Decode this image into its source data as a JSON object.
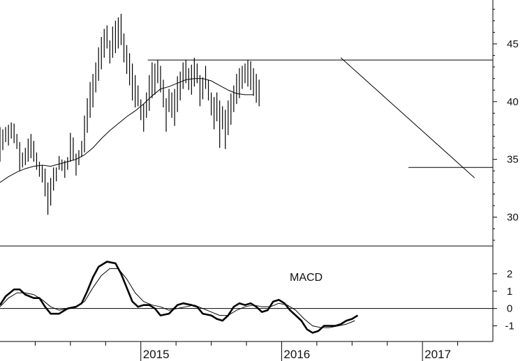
{
  "chart_data": [
    {
      "type": "ohlc",
      "title": "",
      "xlabel": "",
      "ylabel": "",
      "ylim": [
        27.5,
        48.8
      ],
      "yticks": [
        30,
        35,
        40,
        45
      ],
      "xlim": [
        2014.0,
        2017.5
      ],
      "grid": false,
      "bars": [
        [
          2014.0,
          34.8,
          37.8
        ],
        [
          2014.02,
          35.8,
          37.6
        ],
        [
          2014.04,
          36.5,
          37.8
        ],
        [
          2014.06,
          36.2,
          38.0
        ],
        [
          2014.08,
          36.8,
          38.2
        ],
        [
          2014.1,
          36.4,
          38.1
        ],
        [
          2014.12,
          35.9,
          37.2
        ],
        [
          2014.14,
          34.0,
          36.5
        ],
        [
          2014.16,
          34.3,
          35.6
        ],
        [
          2014.18,
          34.5,
          36.0
        ],
        [
          2014.2,
          34.8,
          36.8
        ],
        [
          2014.22,
          35.1,
          37.2
        ],
        [
          2014.24,
          34.8,
          36.6
        ],
        [
          2014.26,
          34.1,
          35.6
        ],
        [
          2014.28,
          33.5,
          34.8
        ],
        [
          2014.3,
          33.0,
          34.5
        ],
        [
          2014.32,
          31.8,
          34.2
        ],
        [
          2014.34,
          30.2,
          33.0
        ],
        [
          2014.36,
          31.0,
          33.4
        ],
        [
          2014.38,
          32.3,
          34.3
        ],
        [
          2014.4,
          33.1,
          34.3
        ],
        [
          2014.42,
          34.1,
          35.3
        ],
        [
          2014.44,
          34.0,
          35.0
        ],
        [
          2014.46,
          33.4,
          34.9
        ],
        [
          2014.48,
          34.1,
          35.2
        ],
        [
          2014.5,
          34.8,
          37.3
        ],
        [
          2014.52,
          34.9,
          36.9
        ],
        [
          2014.54,
          33.6,
          35.5
        ],
        [
          2014.56,
          34.5,
          35.8
        ],
        [
          2014.58,
          35.2,
          36.6
        ],
        [
          2014.6,
          35.6,
          38.8
        ],
        [
          2014.62,
          37.3,
          40.3
        ],
        [
          2014.64,
          38.6,
          41.7
        ],
        [
          2014.66,
          39.5,
          42.4
        ],
        [
          2014.68,
          40.8,
          43.4
        ],
        [
          2014.7,
          41.8,
          44.7
        ],
        [
          2014.72,
          42.8,
          45.6
        ],
        [
          2014.74,
          43.8,
          46.3
        ],
        [
          2014.76,
          44.6,
          46.6
        ],
        [
          2014.78,
          43.3,
          45.3
        ],
        [
          2014.8,
          43.8,
          46.5
        ],
        [
          2014.82,
          44.2,
          47.0
        ],
        [
          2014.84,
          44.6,
          47.3
        ],
        [
          2014.86,
          44.9,
          47.6
        ],
        [
          2014.88,
          43.4,
          45.9
        ],
        [
          2014.9,
          42.4,
          44.9
        ],
        [
          2014.92,
          41.4,
          44.2
        ],
        [
          2014.94,
          40.1,
          43.3
        ],
        [
          2014.96,
          39.5,
          42.3
        ],
        [
          2014.98,
          39.6,
          41.4
        ],
        [
          2015.0,
          38.4,
          40.2
        ],
        [
          2015.02,
          37.4,
          39.8
        ],
        [
          2015.04,
          38.6,
          40.8
        ],
        [
          2015.06,
          39.2,
          42.3
        ],
        [
          2015.08,
          40.3,
          43.4
        ],
        [
          2015.1,
          40.6,
          43.3
        ],
        [
          2015.12,
          41.6,
          43.6
        ],
        [
          2015.14,
          40.8,
          43.1
        ],
        [
          2015.16,
          39.5,
          41.9
        ],
        [
          2015.18,
          37.4,
          40.3
        ],
        [
          2015.2,
          39.1,
          41.1
        ],
        [
          2015.22,
          38.6,
          40.8
        ],
        [
          2015.24,
          37.9,
          41.1
        ],
        [
          2015.26,
          39.1,
          42.2
        ],
        [
          2015.28,
          40.1,
          42.6
        ],
        [
          2015.3,
          41.1,
          43.4
        ],
        [
          2015.32,
          41.6,
          43.6
        ],
        [
          2015.34,
          41.0,
          42.9
        ],
        [
          2015.36,
          40.6,
          43.2
        ],
        [
          2015.38,
          41.3,
          43.8
        ],
        [
          2015.4,
          41.6,
          43.3
        ],
        [
          2015.42,
          39.6,
          42.3
        ],
        [
          2015.44,
          40.2,
          42.1
        ],
        [
          2015.46,
          41.1,
          43.1
        ],
        [
          2015.48,
          40.1,
          41.9
        ],
        [
          2015.5,
          38.8,
          40.8
        ],
        [
          2015.52,
          37.6,
          40.4
        ],
        [
          2015.54,
          38.3,
          40.8
        ],
        [
          2015.56,
          36.0,
          40.1
        ],
        [
          2015.58,
          37.6,
          39.6
        ],
        [
          2015.6,
          35.9,
          39.3
        ],
        [
          2015.62,
          37.1,
          40.1
        ],
        [
          2015.64,
          38.0,
          40.7
        ],
        [
          2015.66,
          39.1,
          41.4
        ],
        [
          2015.68,
          39.8,
          42.4
        ],
        [
          2015.7,
          40.3,
          42.9
        ],
        [
          2015.72,
          41.1,
          43.1
        ],
        [
          2015.74,
          41.6,
          43.3
        ],
        [
          2015.76,
          41.3,
          43.6
        ],
        [
          2015.78,
          41.0,
          43.5
        ],
        [
          2015.8,
          40.5,
          42.9
        ],
        [
          2015.82,
          39.9,
          42.4
        ],
        [
          2015.84,
          39.6,
          41.9
        ]
      ],
      "sma": [
        [
          2014.0,
          33.0
        ],
        [
          2014.06,
          33.5
        ],
        [
          2014.12,
          33.9
        ],
        [
          2014.18,
          34.2
        ],
        [
          2014.24,
          34.4
        ],
        [
          2014.3,
          34.5
        ],
        [
          2014.36,
          34.4
        ],
        [
          2014.42,
          34.6
        ],
        [
          2014.48,
          34.8
        ],
        [
          2014.54,
          35.0
        ],
        [
          2014.6,
          35.4
        ],
        [
          2014.66,
          36.0
        ],
        [
          2014.72,
          36.8
        ],
        [
          2014.78,
          37.5
        ],
        [
          2014.84,
          38.1
        ],
        [
          2014.9,
          38.7
        ],
        [
          2014.96,
          39.2
        ],
        [
          2015.02,
          39.8
        ],
        [
          2015.08,
          40.5
        ],
        [
          2015.14,
          41.1
        ],
        [
          2015.2,
          41.3
        ],
        [
          2015.26,
          41.6
        ],
        [
          2015.32,
          41.9
        ],
        [
          2015.38,
          42.0
        ],
        [
          2015.44,
          42.0
        ],
        [
          2015.5,
          41.8
        ],
        [
          2015.56,
          41.4
        ],
        [
          2015.62,
          41.0
        ],
        [
          2015.68,
          40.7
        ],
        [
          2015.74,
          40.6
        ],
        [
          2015.8,
          40.6
        ]
      ],
      "annotations": [
        {
          "kind": "hline",
          "x0": 2015.05,
          "x1": 2017.5,
          "y": 43.6
        },
        {
          "kind": "hline",
          "x0": 2016.9,
          "x1": 2017.5,
          "y": 34.3
        },
        {
          "kind": "trendline",
          "x0": 2016.42,
          "y0": 43.8,
          "x1": 2017.37,
          "y1": 33.4
        }
      ]
    },
    {
      "type": "line",
      "title": "MACD",
      "ylim": [
        -1.9,
        3.6
      ],
      "yticks": [
        -1,
        0,
        1,
        2
      ],
      "xticks": [
        2015,
        2016,
        2017
      ],
      "xlim": [
        2014.0,
        2017.5
      ],
      "zero_line": true,
      "series": [
        {
          "style": "thick",
          "points": [
            [
              2014.0,
              0.2
            ],
            [
              2014.04,
              0.7
            ],
            [
              2014.1,
              1.1
            ],
            [
              2014.14,
              1.1
            ],
            [
              2014.18,
              0.8
            ],
            [
              2014.24,
              0.6
            ],
            [
              2014.28,
              0.6
            ],
            [
              2014.32,
              0.1
            ],
            [
              2014.36,
              -0.3
            ],
            [
              2014.42,
              -0.3
            ],
            [
              2014.48,
              0.0
            ],
            [
              2014.54,
              0.1
            ],
            [
              2014.58,
              0.3
            ],
            [
              2014.62,
              1.0
            ],
            [
              2014.66,
              1.8
            ],
            [
              2014.7,
              2.4
            ],
            [
              2014.76,
              2.7
            ],
            [
              2014.82,
              2.6
            ],
            [
              2014.86,
              2.0
            ],
            [
              2014.9,
              1.2
            ],
            [
              2014.94,
              0.4
            ],
            [
              2014.98,
              0.1
            ],
            [
              2015.02,
              0.2
            ],
            [
              2015.06,
              0.2
            ],
            [
              2015.1,
              0.0
            ],
            [
              2015.14,
              -0.4
            ],
            [
              2015.2,
              -0.3
            ],
            [
              2015.26,
              0.2
            ],
            [
              2015.3,
              0.3
            ],
            [
              2015.36,
              0.2
            ],
            [
              2015.4,
              0.1
            ],
            [
              2015.44,
              -0.3
            ],
            [
              2015.5,
              -0.4
            ],
            [
              2015.54,
              -0.6
            ],
            [
              2015.58,
              -0.7
            ],
            [
              2015.62,
              -0.4
            ],
            [
              2015.66,
              0.1
            ],
            [
              2015.7,
              0.3
            ],
            [
              2015.74,
              0.2
            ],
            [
              2015.78,
              0.3
            ],
            [
              2015.82,
              0.1
            ],
            [
              2015.86,
              -0.2
            ],
            [
              2015.9,
              -0.1
            ],
            [
              2015.94,
              0.4
            ],
            [
              2015.98,
              0.5
            ],
            [
              2016.02,
              0.3
            ],
            [
              2016.06,
              -0.1
            ],
            [
              2016.1,
              -0.4
            ],
            [
              2016.14,
              -0.7
            ],
            [
              2016.18,
              -1.2
            ],
            [
              2016.22,
              -1.4
            ],
            [
              2016.26,
              -1.3
            ],
            [
              2016.3,
              -1.0
            ],
            [
              2016.34,
              -1.0
            ],
            [
              2016.38,
              -1.0
            ],
            [
              2016.42,
              -0.9
            ],
            [
              2016.46,
              -0.7
            ],
            [
              2016.5,
              -0.6
            ],
            [
              2016.54,
              -0.4
            ]
          ]
        },
        {
          "style": "thin",
          "points": [
            [
              2014.0,
              0.1
            ],
            [
              2014.06,
              0.6
            ],
            [
              2014.12,
              0.9
            ],
            [
              2014.18,
              0.9
            ],
            [
              2014.24,
              0.8
            ],
            [
              2014.3,
              0.5
            ],
            [
              2014.36,
              0.1
            ],
            [
              2014.42,
              -0.1
            ],
            [
              2014.48,
              0.0
            ],
            [
              2014.54,
              0.1
            ],
            [
              2014.6,
              0.4
            ],
            [
              2014.66,
              1.2
            ],
            [
              2014.72,
              1.9
            ],
            [
              2014.78,
              2.3
            ],
            [
              2014.84,
              2.3
            ],
            [
              2014.9,
              1.7
            ],
            [
              2014.96,
              0.9
            ],
            [
              2015.02,
              0.4
            ],
            [
              2015.08,
              0.2
            ],
            [
              2015.14,
              0.1
            ],
            [
              2015.2,
              -0.1
            ],
            [
              2015.26,
              0.0
            ],
            [
              2015.32,
              0.1
            ],
            [
              2015.38,
              0.2
            ],
            [
              2015.44,
              0.0
            ],
            [
              2015.5,
              -0.2
            ],
            [
              2015.56,
              -0.4
            ],
            [
              2015.62,
              -0.4
            ],
            [
              2015.68,
              -0.1
            ],
            [
              2015.74,
              0.1
            ],
            [
              2015.8,
              0.2
            ],
            [
              2015.86,
              0.1
            ],
            [
              2015.92,
              0.1
            ],
            [
              2015.98,
              0.3
            ],
            [
              2016.04,
              0.2
            ],
            [
              2016.1,
              -0.1
            ],
            [
              2016.16,
              -0.6
            ],
            [
              2016.22,
              -1.0
            ],
            [
              2016.28,
              -1.1
            ],
            [
              2016.34,
              -1.1
            ],
            [
              2016.4,
              -1.0
            ],
            [
              2016.46,
              -0.9
            ],
            [
              2016.52,
              -0.7
            ]
          ]
        }
      ]
    }
  ]
}
